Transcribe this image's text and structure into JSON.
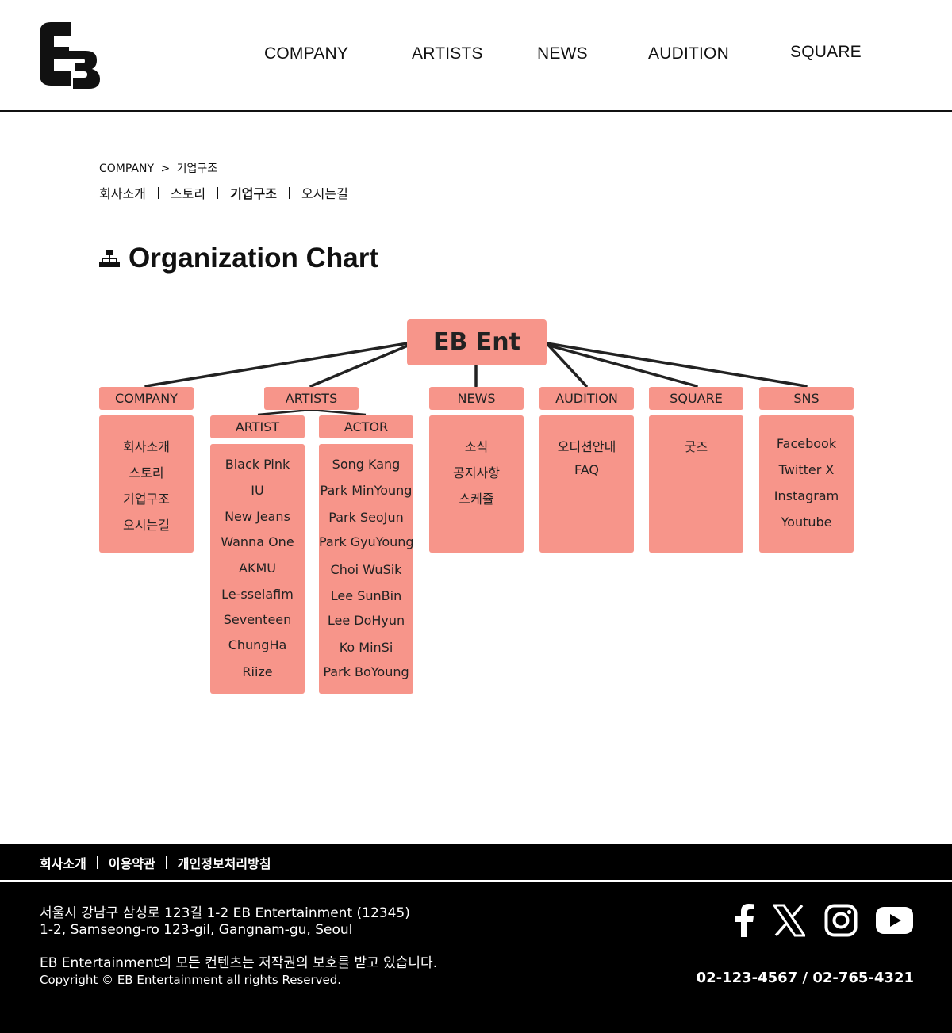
{
  "header": {
    "logo_text": "EB",
    "nav": [
      "COMPANY",
      "ARTISTS",
      "NEWS",
      "AUDITION",
      "SQUARE"
    ]
  },
  "breadcrumb": {
    "section": "COMPANY",
    "separator": ">",
    "current": "기업구조"
  },
  "subnav": {
    "items": [
      "회사소개",
      "스토리",
      "기업구조",
      "오시는길"
    ],
    "active": "기업구조"
  },
  "page": {
    "title": "Organization Chart",
    "title_icon": "sitemap-icon"
  },
  "org_chart": {
    "root": "EB Ent",
    "departments": {
      "company": {
        "label": "COMPANY",
        "items": [
          "회사소개",
          "스토리",
          "기업구조",
          "오시는길"
        ]
      },
      "artists": {
        "label": "ARTISTS",
        "artist": {
          "label": "ARTIST",
          "items": [
            "Black Pink",
            "IU",
            "New Jeans",
            "Wanna One",
            "AKMU",
            "Le-sselafim",
            "Seventeen",
            "ChungHa",
            "Riize"
          ]
        },
        "actor": {
          "label": "ACTOR",
          "items": [
            "Song Kang",
            "Park MinYoung",
            "Park SeoJun",
            "Park GyuYoung",
            "Choi WuSik",
            "Lee SunBin",
            "Lee DoHyun",
            "Ko MinSi",
            "Park BoYoung"
          ]
        }
      },
      "news": {
        "label": "NEWS",
        "items": [
          "소식",
          "공지사항",
          "스케쥴"
        ]
      },
      "audition": {
        "label": "AUDITION",
        "items": [
          "오디션안내",
          "FAQ"
        ]
      },
      "square": {
        "label": "SQUARE",
        "items": [
          "굿즈"
        ]
      },
      "sns": {
        "label": "SNS",
        "items": [
          "Facebook",
          "Twitter X",
          "Instagram",
          "Youtube"
        ]
      }
    },
    "box_color": "#f7958a"
  },
  "footer": {
    "links": [
      "회사소개",
      "이용약관",
      "개인정보처리방침"
    ],
    "address_kr": "서울시 강남구 삼성로 123길 1-2 EB Entertainment (12345)",
    "address_en": "1-2, Samseong-ro 123-gil, Gangnam-gu, Seoul",
    "copyright_note": "EB Entertainment의 모든 컨텐츠는 저작권의 보호를 받고 있습니다.",
    "copyright": "Copyright © EB Entertainment all rights Reserved.",
    "phones": "02-123-4567 / 02-765-4321",
    "social_icons": [
      "facebook-icon",
      "x-icon",
      "instagram-icon",
      "youtube-icon"
    ]
  }
}
